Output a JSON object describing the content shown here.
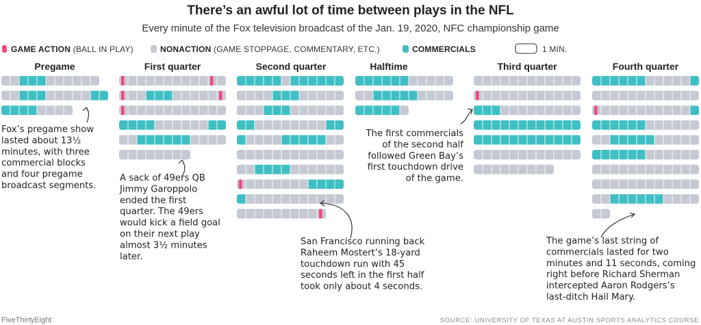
{
  "title": "There’s an awful lot of time between plays in the NFL",
  "subtitle": "Every minute of the Fox television broadcast of the Jan. 19, 2020, NFC championship game",
  "legend": {
    "items": [
      {
        "bold": "GAME ACTION",
        "rest": " (BALL IN PLAY)",
        "key": "action"
      },
      {
        "bold": "NONACTION",
        "rest": " (GAME STOPPAGE, COMMENTARY, ETC.)",
        "key": "nonaction"
      },
      {
        "bold": "COMMERCIALS",
        "rest": "",
        "key": "commercial"
      }
    ],
    "scale_label": "1 MIN."
  },
  "colors": {
    "action": "#f2477e",
    "nonaction": "#c5c9d3",
    "commercial": "#3fbfc4",
    "divider": "#ffffff",
    "text": "#222222"
  },
  "chart_data": {
    "type": "timeline",
    "unit": "1 pill = 1 minute of broadcast",
    "segment_codes": {
      "a": "game action",
      "n": "nonaction",
      "c": "commercials"
    },
    "panels": [
      {
        "label": "Pregame",
        "rows": [
          [
            "n",
            "n",
            "c",
            "c",
            "c",
            "n",
            "n",
            "n",
            "n",
            "n",
            "n"
          ],
          [
            "n",
            "n",
            "c",
            "c",
            "c",
            "n",
            "n",
            "n",
            "n",
            "n",
            "c",
            "c"
          ],
          [
            "c",
            "c",
            "c",
            "c",
            "n",
            "n",
            "n",
            "n"
          ]
        ]
      },
      {
        "label": "First quarter",
        "rows": [
          [
            "a",
            "n",
            "n",
            "n",
            "n",
            "n",
            "n",
            "n",
            "n",
            "n",
            "a",
            "n"
          ],
          [
            "a",
            "n",
            "n",
            "c",
            "c",
            "c",
            "n",
            "n",
            "n",
            "n",
            "n",
            "a"
          ],
          [
            "a",
            "n",
            "n",
            "n",
            "n",
            "n",
            "n",
            "n",
            "n",
            "n",
            "n",
            "n"
          ],
          [
            "c",
            "c",
            "c",
            "c",
            "n",
            "n",
            "n",
            "n",
            "n",
            "n",
            "c",
            "c"
          ],
          [
            "n",
            "n",
            "c",
            "c",
            "c",
            "c",
            "c",
            "c",
            "n",
            "n",
            "n",
            "n"
          ],
          [
            "n",
            "n",
            "n",
            "n",
            "n",
            "n",
            "n",
            "n"
          ]
        ]
      },
      {
        "label": "Second quarter",
        "rows": [
          [
            "c",
            "c",
            "c",
            "c",
            "c",
            "n",
            "c",
            "c",
            "c",
            "c",
            "c",
            "c"
          ],
          [
            "n",
            "n",
            "n",
            "n",
            "c",
            "c",
            "c",
            "n",
            "n",
            "n",
            "n",
            "n"
          ],
          [
            "n",
            "n",
            "n",
            "c",
            "c",
            "c",
            "n",
            "n",
            "n",
            "n",
            "n",
            "n"
          ],
          [
            "c",
            "c",
            "n",
            "n",
            "n",
            "n",
            "n",
            "n",
            "n",
            "n",
            "c",
            "c"
          ],
          [
            "c",
            "n",
            "n",
            "n",
            "n",
            "c",
            "c",
            "c",
            "c",
            "c",
            "n",
            "n"
          ],
          [
            "n",
            "n",
            "n",
            "n",
            "n",
            "n",
            "n",
            "n",
            "n",
            "n",
            "n",
            "n"
          ],
          [
            "n",
            "n",
            "c",
            "c",
            "c",
            "c",
            "n",
            "n",
            "n",
            "n",
            "n",
            "n"
          ],
          [
            "a",
            "n",
            "n",
            "n",
            "n",
            "n",
            "n",
            "n",
            "c",
            "c",
            "c",
            "c"
          ],
          [
            "c",
            "n",
            "n",
            "n",
            "n",
            "n",
            "n",
            "n",
            "n",
            "n",
            "n",
            "n"
          ],
          [
            "n",
            "n",
            "n",
            "n",
            "n",
            "n",
            "n",
            "n",
            "n",
            "a"
          ]
        ]
      },
      {
        "label": "Halftime",
        "rows": [
          [
            "c",
            "c",
            "c",
            "c",
            "c",
            "c",
            "n",
            "n",
            "n",
            "n",
            "n"
          ],
          [
            "n",
            "n",
            "c",
            "c",
            "c",
            "c",
            "c",
            "n",
            "n",
            "n",
            "n"
          ],
          [
            "c",
            "c",
            "c",
            "c",
            "c",
            "n"
          ]
        ]
      },
      {
        "label": "Third quarter",
        "rows": [
          [
            "n",
            "n",
            "n",
            "n",
            "n",
            "n",
            "n",
            "n",
            "n",
            "n",
            "n",
            "n"
          ],
          [
            "a",
            "n",
            "n",
            "n",
            "n",
            "n",
            "n",
            "n",
            "n",
            "n",
            "n",
            "n"
          ],
          [
            "c",
            "c",
            "c",
            "n",
            "n",
            "n",
            "n",
            "n",
            "n",
            "n",
            "n",
            "n"
          ],
          [
            "c",
            "c",
            "c",
            "c",
            "c",
            "c",
            "c",
            "c",
            "c",
            "c",
            "c",
            "c"
          ],
          [
            "c",
            "c",
            "c",
            "c",
            "c",
            "c",
            "c",
            "c",
            "c",
            "c",
            "c",
            "c"
          ],
          [
            "n",
            "n",
            "n",
            "n",
            "n",
            "n",
            "n",
            "n",
            "n",
            "n",
            "n",
            "n"
          ],
          [
            "n",
            "n",
            "n",
            "n",
            "n",
            "n",
            "n",
            "n",
            "n"
          ]
        ]
      },
      {
        "label": "Fourth quarter",
        "rows": [
          [
            "c",
            "c",
            "c",
            "c",
            "c",
            "c",
            "n",
            "n",
            "n",
            "n",
            "n",
            "c"
          ],
          [
            "n",
            "n",
            "n",
            "n",
            "n",
            "n",
            "n",
            "n",
            "n",
            "n",
            "n",
            "n"
          ],
          [
            "a",
            "n",
            "n",
            "n",
            "n",
            "n",
            "n",
            "n",
            "n",
            "n",
            "n",
            "c"
          ],
          [
            "c",
            "c",
            "c",
            "c",
            "c",
            "c",
            "n",
            "n",
            "n",
            "n",
            "n",
            "n"
          ],
          [
            "n",
            "n",
            "c",
            "c",
            "c",
            "c",
            "c",
            "n",
            "n",
            "n",
            "n",
            "n"
          ],
          [
            "c",
            "c",
            "c",
            "c",
            "c",
            "c",
            "n",
            "n",
            "n",
            "n",
            "n",
            "n"
          ],
          [
            "n",
            "n",
            "n",
            "n",
            "n",
            "n",
            "n",
            "n",
            "n",
            "n",
            "n",
            "n"
          ],
          [
            "n",
            "n",
            "n",
            "n",
            "n",
            "n",
            "n",
            "n",
            "n",
            "n",
            "n",
            "n"
          ],
          [
            "n",
            "n",
            "c",
            "c",
            "c",
            "c",
            "c",
            "c",
            "n",
            "n",
            "n",
            "n"
          ],
          [
            "n",
            "n"
          ]
        ]
      }
    ]
  },
  "annotations": [
    {
      "id": "pregame",
      "lines": [
        "Fox’s pregame show",
        "lasted about 13½",
        "minutes, with three",
        "commercial blocks",
        "and four pregame",
        "broadcast segments."
      ]
    },
    {
      "id": "sack",
      "lines": [
        "A sack of 49ers QB",
        "Jimmy Garoppolo",
        "ended the first",
        "quarter. The 49ers",
        "would kick a field goal",
        "on their next play",
        "almost 3½ minutes",
        "later."
      ]
    },
    {
      "id": "mostert",
      "lines": [
        "San Francisco running back",
        "Raheem Mostert’s 18-yard",
        "touchdown run with 45",
        "seconds left in the first half",
        "took only about 4 seconds."
      ]
    },
    {
      "id": "halftime",
      "lines": [
        "The first commercials",
        "of the second half",
        "followed Green Bay’s",
        "first touchdown drive",
        "of the game."
      ]
    },
    {
      "id": "sherman",
      "lines": [
        "The game’s last string of",
        "commercials lasted for two",
        "minutes and 11 seconds, coming",
        "right before Richard Sherman",
        "intercepted Aaron Rodgers’s",
        "last-ditch Hail Mary."
      ]
    }
  ],
  "footer": {
    "left": "FiveThirtyEight",
    "right": "SOURCE: UNIVERSITY OF TEXAS AT AUSTIN SPORTS ANALYTICS COURSE"
  }
}
